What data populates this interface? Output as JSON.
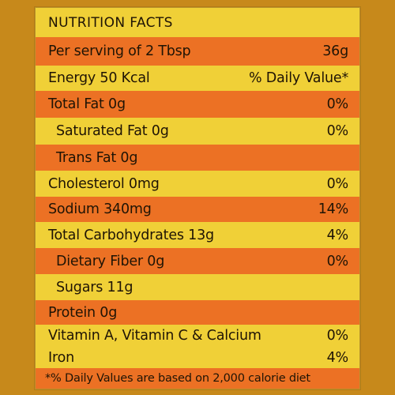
{
  "label": {
    "title": "NUTRITION FACTS",
    "serving": {
      "label": "Per serving of 2 Tbsp",
      "value": "36g"
    },
    "energy": {
      "label": "Energy 50 Kcal",
      "value": "% Daily Value*"
    },
    "rows": [
      {
        "label": "Total Fat 0g",
        "value": "0%"
      },
      {
        "label": "Saturated Fat 0g",
        "value": "0%"
      },
      {
        "label": "Trans Fat 0g",
        "value": ""
      },
      {
        "label": "Cholesterol 0mg",
        "value": "0%"
      },
      {
        "label": "Sodium 340mg",
        "value": "14%"
      },
      {
        "label": "Total Carbohydrates 13g",
        "value": "4%"
      },
      {
        "label": "Dietary Fiber 0g",
        "value": "0%"
      },
      {
        "label": "Sugars 11g",
        "value": ""
      },
      {
        "label": "Protein 0g",
        "value": ""
      },
      {
        "label": "Vitamin A, Vitamin C & Calcium",
        "value": "0%"
      },
      {
        "label": "Iron",
        "value": "4%"
      }
    ],
    "footnote": "*% Daily Values are based on 2,000 calorie diet"
  },
  "colors": {
    "band_orange": "#ec7124",
    "band_yellow": "#f0d037",
    "text": "#1f1405",
    "background": "#c7891b"
  }
}
